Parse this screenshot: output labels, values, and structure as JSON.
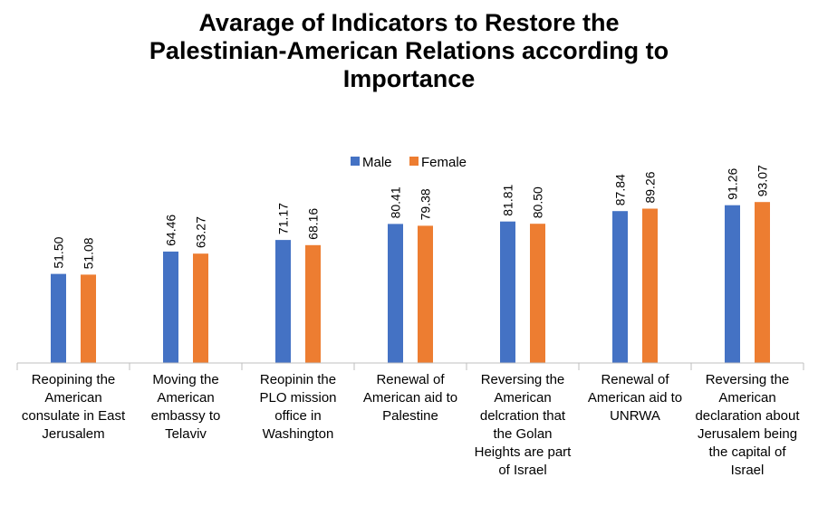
{
  "chart_data": {
    "type": "bar",
    "title_lines": [
      "Avarage of Indicators to Restore the",
      "Palestinian-American Relations according to",
      "Importance"
    ],
    "categories": [
      "Reopining the American consulate in East Jerusalem",
      "Moving the American embassy to Telaviv",
      "Reopinin the PLO mission office in Washington",
      "Renewal of American aid to Palestine",
      "Reversing the American delcration that the Golan Heights are part of Israel",
      "Renewal of American aid to UNRWA",
      "Reversing the American declaration about Jerusalem being the capital of Israel"
    ],
    "series": [
      {
        "name": "Male",
        "color": "#4472C4",
        "values": [
          51.5,
          64.46,
          71.17,
          80.41,
          81.81,
          87.84,
          91.26
        ],
        "labels": [
          "51.50",
          "64.46",
          "71.17",
          "80.41",
          "81.81",
          "87.84",
          "91.26"
        ]
      },
      {
        "name": "Female",
        "color": "#ED7D31",
        "values": [
          51.08,
          63.27,
          68.16,
          79.38,
          80.5,
          89.26,
          93.07
        ],
        "labels": [
          "51.08",
          "63.27",
          "68.16",
          "79.38",
          "80.50",
          "89.26",
          "93.07"
        ]
      }
    ],
    "ylim": [
      0,
      100
    ],
    "legend": "top-center",
    "grid": false
  }
}
